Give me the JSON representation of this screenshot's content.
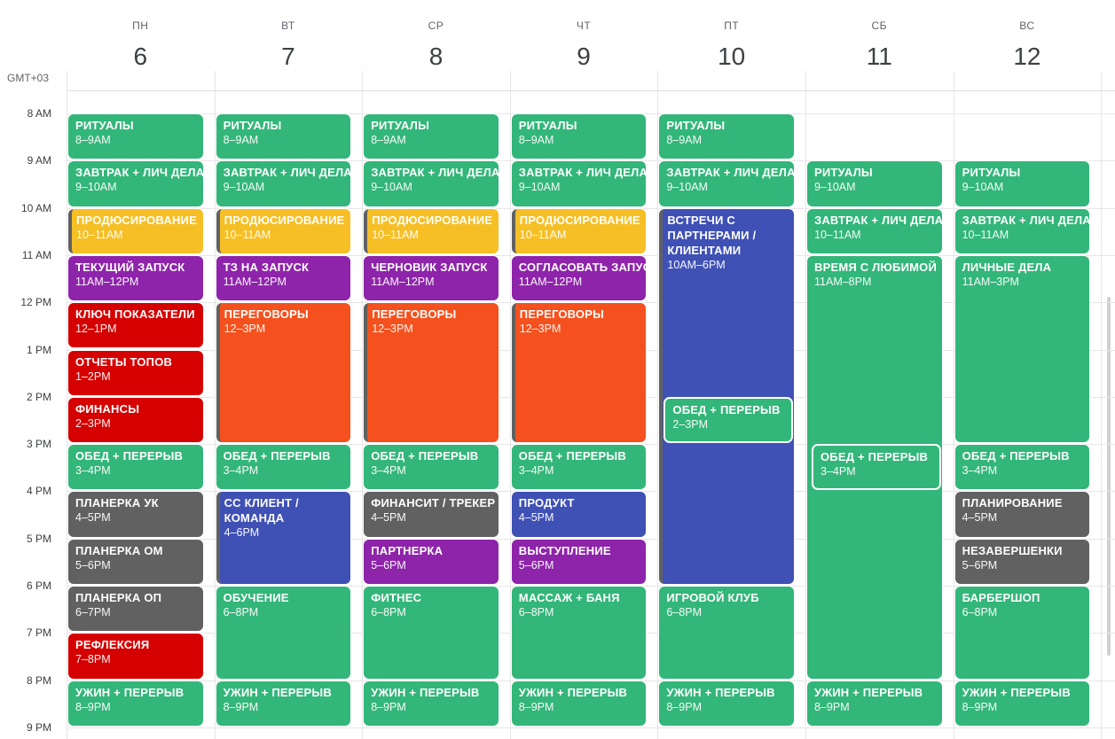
{
  "timezone": "GMT+03",
  "days": [
    {
      "dow": "ПН",
      "num": "6"
    },
    {
      "dow": "ВТ",
      "num": "7"
    },
    {
      "dow": "СР",
      "num": "8"
    },
    {
      "dow": "ЧТ",
      "num": "9"
    },
    {
      "dow": "ПТ",
      "num": "10"
    },
    {
      "dow": "СБ",
      "num": "11"
    },
    {
      "dow": "ВС",
      "num": "12"
    }
  ],
  "hours": [
    "8 AM",
    "9 AM",
    "10 AM",
    "11 AM",
    "12 PM",
    "1 PM",
    "2 PM",
    "3 PM",
    "4 PM",
    "5 PM",
    "6 PM",
    "7 PM",
    "8 PM",
    "9 PM"
  ],
  "colors": {
    "green": "#33b679",
    "yellow": "#f6bf26",
    "purple": "#8e24aa",
    "red": "#d50000",
    "orange": "#f4511e",
    "graphite": "#616161",
    "blue": "#3f51b5"
  },
  "events": [
    {
      "day": 0,
      "start": 8,
      "end": 9,
      "title": "РИТУАЛЫ",
      "time": "8–9AM",
      "color": "green"
    },
    {
      "day": 0,
      "start": 9,
      "end": 10,
      "title": "ЗАВТРАК + ЛИЧ ДЕЛА",
      "time": "9–10AM",
      "color": "green"
    },
    {
      "day": 0,
      "start": 10,
      "end": 11,
      "title": "ПРОДЮСИРОВАНИЕ",
      "time": "10–11AM",
      "color": "yellow",
      "cont": true
    },
    {
      "day": 0,
      "start": 11,
      "end": 12,
      "title": "ТЕКУЩИЙ ЗАПУСК",
      "time": "11AM–12PM",
      "color": "purple"
    },
    {
      "day": 0,
      "start": 12,
      "end": 13,
      "title": "КЛЮЧ ПОКАЗАТЕЛИ",
      "time": "12–1PM",
      "color": "red"
    },
    {
      "day": 0,
      "start": 13,
      "end": 14,
      "title": "ОТЧЕТЫ ТОПОВ",
      "time": "1–2PM",
      "color": "red"
    },
    {
      "day": 0,
      "start": 14,
      "end": 15,
      "title": "ФИНАНСЫ",
      "time": "2–3PM",
      "color": "red"
    },
    {
      "day": 0,
      "start": 15,
      "end": 16,
      "title": "ОБЕД + ПЕРЕРЫВ",
      "time": "3–4PM",
      "color": "green"
    },
    {
      "day": 0,
      "start": 16,
      "end": 17,
      "title": "ПЛАНЕРКА УК",
      "time": "4–5PM",
      "color": "graphite"
    },
    {
      "day": 0,
      "start": 17,
      "end": 18,
      "title": "ПЛАНЕРКА ОМ",
      "time": "5–6PM",
      "color": "graphite"
    },
    {
      "day": 0,
      "start": 18,
      "end": 19,
      "title": "ПЛАНЕРКА ОП",
      "time": "6–7PM",
      "color": "graphite"
    },
    {
      "day": 0,
      "start": 19,
      "end": 20,
      "title": "РЕФЛЕКСИЯ",
      "time": "7–8PM",
      "color": "red"
    },
    {
      "day": 0,
      "start": 20,
      "end": 21,
      "title": "УЖИН + ПЕРЕРЫВ",
      "time": "8–9PM",
      "color": "green"
    },
    {
      "day": 1,
      "start": 8,
      "end": 9,
      "title": "РИТУАЛЫ",
      "time": "8–9AM",
      "color": "green"
    },
    {
      "day": 1,
      "start": 9,
      "end": 10,
      "title": "ЗАВТРАК + ЛИЧ ДЕЛА",
      "time": "9–10AM",
      "color": "green"
    },
    {
      "day": 1,
      "start": 10,
      "end": 11,
      "title": "ПРОДЮСИРОВАНИЕ",
      "time": "10–11AM",
      "color": "yellow",
      "cont": true
    },
    {
      "day": 1,
      "start": 11,
      "end": 12,
      "title": "ТЗ НА ЗАПУСК",
      "time": "11AM–12PM",
      "color": "purple"
    },
    {
      "day": 1,
      "start": 12,
      "end": 15,
      "title": "ПЕРЕГОВОРЫ",
      "time": "12–3PM",
      "color": "orange",
      "cont": true
    },
    {
      "day": 1,
      "start": 15,
      "end": 16,
      "title": "ОБЕД + ПЕРЕРЫВ",
      "time": "3–4PM",
      "color": "green"
    },
    {
      "day": 1,
      "start": 16,
      "end": 18,
      "title": "СС КЛИЕНТ / КОМАНДА",
      "time": "4–6PM",
      "color": "blue",
      "cont": true,
      "wrap": true
    },
    {
      "day": 1,
      "start": 18,
      "end": 20,
      "title": "ОБУЧЕНИЕ",
      "time": "6–8PM",
      "color": "green"
    },
    {
      "day": 1,
      "start": 20,
      "end": 21,
      "title": "УЖИН + ПЕРЕРЫВ",
      "time": "8–9PM",
      "color": "green"
    },
    {
      "day": 2,
      "start": 8,
      "end": 9,
      "title": "РИТУАЛЫ",
      "time": "8–9AM",
      "color": "green"
    },
    {
      "day": 2,
      "start": 9,
      "end": 10,
      "title": "ЗАВТРАК + ЛИЧ ДЕЛА",
      "time": "9–10AM",
      "color": "green"
    },
    {
      "day": 2,
      "start": 10,
      "end": 11,
      "title": "ПРОДЮСИРОВАНИЕ",
      "time": "10–11AM",
      "color": "yellow",
      "cont": true
    },
    {
      "day": 2,
      "start": 11,
      "end": 12,
      "title": "ЧЕРНОВИК ЗАПУСК",
      "time": "11AM–12PM",
      "color": "purple"
    },
    {
      "day": 2,
      "start": 12,
      "end": 15,
      "title": "ПЕРЕГОВОРЫ",
      "time": "12–3PM",
      "color": "orange",
      "cont": true
    },
    {
      "day": 2,
      "start": 15,
      "end": 16,
      "title": "ОБЕД + ПЕРЕРЫВ",
      "time": "3–4PM",
      "color": "green"
    },
    {
      "day": 2,
      "start": 16,
      "end": 17,
      "title": "ФИНАНСИТ / ТРЕКЕР",
      "time": "4–5PM",
      "color": "graphite"
    },
    {
      "day": 2,
      "start": 17,
      "end": 18,
      "title": "ПАРТНЕРКА",
      "time": "5–6PM",
      "color": "purple"
    },
    {
      "day": 2,
      "start": 18,
      "end": 20,
      "title": "ФИТНЕС",
      "time": "6–8PM",
      "color": "green"
    },
    {
      "day": 2,
      "start": 20,
      "end": 21,
      "title": "УЖИН + ПЕРЕРЫВ",
      "time": "8–9PM",
      "color": "green"
    },
    {
      "day": 3,
      "start": 8,
      "end": 9,
      "title": "РИТУАЛЫ",
      "time": "8–9AM",
      "color": "green"
    },
    {
      "day": 3,
      "start": 9,
      "end": 10,
      "title": "ЗАВТРАК + ЛИЧ ДЕЛА",
      "time": "9–10AM",
      "color": "green"
    },
    {
      "day": 3,
      "start": 10,
      "end": 11,
      "title": "ПРОДЮСИРОВАНИЕ",
      "time": "10–11AM",
      "color": "yellow",
      "cont": true
    },
    {
      "day": 3,
      "start": 11,
      "end": 12,
      "title": "СОГЛАСОВАТЬ ЗАПУСК",
      "time": "11AM–12PM",
      "color": "purple"
    },
    {
      "day": 3,
      "start": 12,
      "end": 15,
      "title": "ПЕРЕГОВОРЫ",
      "time": "12–3PM",
      "color": "orange",
      "cont": true
    },
    {
      "day": 3,
      "start": 15,
      "end": 16,
      "title": "ОБЕД + ПЕРЕРЫВ",
      "time": "3–4PM",
      "color": "green"
    },
    {
      "day": 3,
      "start": 16,
      "end": 17,
      "title": "ПРОДУКТ",
      "time": "4–5PM",
      "color": "blue"
    },
    {
      "day": 3,
      "start": 17,
      "end": 18,
      "title": "ВЫСТУПЛЕНИЕ",
      "time": "5–6PM",
      "color": "purple"
    },
    {
      "day": 3,
      "start": 18,
      "end": 20,
      "title": "МАССАЖ + БАНЯ",
      "time": "6–8PM",
      "color": "green"
    },
    {
      "day": 3,
      "start": 20,
      "end": 21,
      "title": "УЖИН + ПЕРЕРЫВ",
      "time": "8–9PM",
      "color": "green"
    },
    {
      "day": 4,
      "start": 8,
      "end": 9,
      "title": "РИТУАЛЫ",
      "time": "8–9AM",
      "color": "green"
    },
    {
      "day": 4,
      "start": 9,
      "end": 10,
      "title": "ЗАВТРАК + ЛИЧ ДЕЛА",
      "time": "9–10AM",
      "color": "green"
    },
    {
      "day": 4,
      "start": 10,
      "end": 18,
      "title": "ВСТРЕЧИ С ПАРТНЕРАМИ / КЛИЕНТАМИ",
      "time": "10AM–6PM",
      "color": "blue",
      "cont": true,
      "wrap": true
    },
    {
      "day": 4,
      "start": 14,
      "end": 15,
      "title": "ОБЕД + ПЕРЕРЫВ",
      "time": "2–3PM",
      "color": "green",
      "overlay": true
    },
    {
      "day": 4,
      "start": 18,
      "end": 20,
      "title": "ИГРОВОЙ КЛУБ",
      "time": "6–8PM",
      "color": "green"
    },
    {
      "day": 4,
      "start": 20,
      "end": 21,
      "title": "УЖИН + ПЕРЕРЫВ",
      "time": "8–9PM",
      "color": "green"
    },
    {
      "day": 5,
      "start": 9,
      "end": 10,
      "title": "РИТУАЛЫ",
      "time": "9–10AM",
      "color": "green"
    },
    {
      "day": 5,
      "start": 10,
      "end": 11,
      "title": "ЗАВТРАК + ЛИЧ ДЕЛА",
      "time": "10–11AM",
      "color": "green"
    },
    {
      "day": 5,
      "start": 11,
      "end": 20,
      "title": "ВРЕМЯ С ЛЮБИМОЙ",
      "time": "11AM–8PM",
      "color": "green"
    },
    {
      "day": 5,
      "start": 15,
      "end": 16,
      "title": "ОБЕД + ПЕРЕРЫВ",
      "time": "3–4PM",
      "color": "green",
      "overlay": true
    },
    {
      "day": 5,
      "start": 20,
      "end": 21,
      "title": "УЖИН + ПЕРЕРЫВ",
      "time": "8–9PM",
      "color": "green"
    },
    {
      "day": 6,
      "start": 9,
      "end": 10,
      "title": "РИТУАЛЫ",
      "time": "9–10AM",
      "color": "green"
    },
    {
      "day": 6,
      "start": 10,
      "end": 11,
      "title": "ЗАВТРАК + ЛИЧ ДЕЛА",
      "time": "10–11AM",
      "color": "green"
    },
    {
      "day": 6,
      "start": 11,
      "end": 15,
      "title": "ЛИЧНЫЕ ДЕЛА",
      "time": "11AM–3PM",
      "color": "green"
    },
    {
      "day": 6,
      "start": 15,
      "end": 16,
      "title": "ОБЕД + ПЕРЕРЫВ",
      "time": "3–4PM",
      "color": "green"
    },
    {
      "day": 6,
      "start": 16,
      "end": 17,
      "title": "ПЛАНИРОВАНИЕ",
      "time": "4–5PM",
      "color": "graphite"
    },
    {
      "day": 6,
      "start": 17,
      "end": 18,
      "title": "НЕЗАВЕРШЕНКИ",
      "time": "5–6PM",
      "color": "graphite"
    },
    {
      "day": 6,
      "start": 18,
      "end": 20,
      "title": "БАРБЕРШОП",
      "time": "6–8PM",
      "color": "green"
    },
    {
      "day": 6,
      "start": 20,
      "end": 21,
      "title": "УЖИН + ПЕРЕРЫВ",
      "time": "8–9PM",
      "color": "green"
    }
  ]
}
